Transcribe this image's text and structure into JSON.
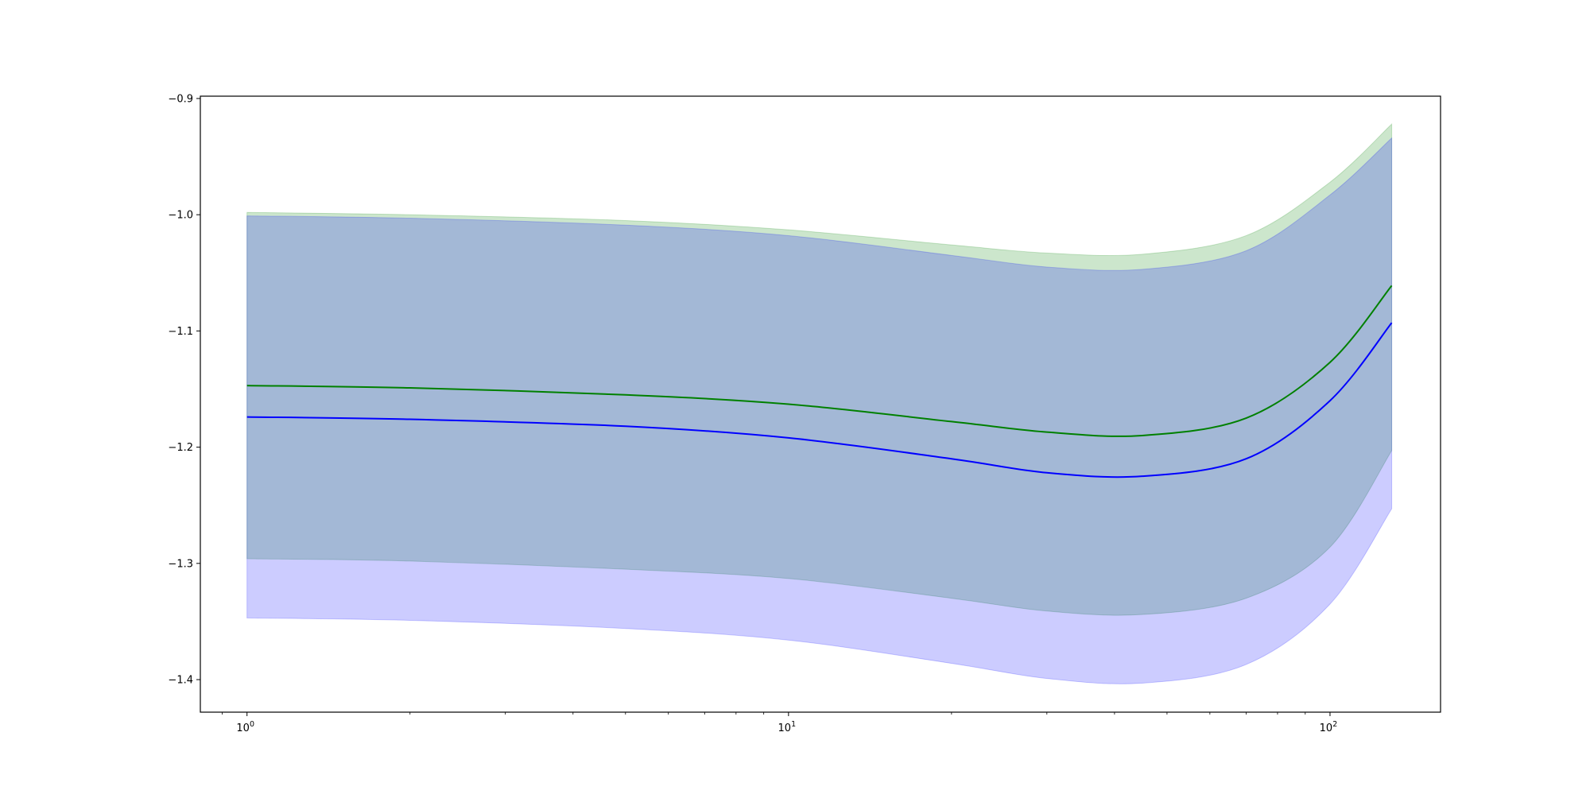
{
  "chart_data": {
    "type": "line",
    "xscale": "log",
    "xlim": [
      0.82,
      160
    ],
    "ylim": [
      -1.428,
      -0.898
    ],
    "grid": false,
    "x_ticks": [
      {
        "value": 1,
        "base": "10",
        "exp": "0"
      },
      {
        "value": 10,
        "base": "10",
        "exp": "1"
      },
      {
        "value": 100,
        "base": "10",
        "exp": "2"
      }
    ],
    "y_ticks": [
      {
        "value": -0.9,
        "label": "−0.9"
      },
      {
        "value": -1.0,
        "label": "−1.0"
      },
      {
        "value": -1.1,
        "label": "−1.1"
      },
      {
        "value": -1.2,
        "label": "−1.2"
      },
      {
        "value": -1.3,
        "label": "−1.3"
      },
      {
        "value": -1.4,
        "label": "−1.4"
      }
    ],
    "x": [
      1,
      2,
      5,
      10,
      20,
      30,
      45,
      70,
      100,
      130
    ],
    "series": [
      {
        "color": "#008000",
        "band_color": "#008000",
        "band_opacity": 0.2,
        "values": [
          -1.147,
          -1.149,
          -1.155,
          -1.163,
          -1.178,
          -1.187,
          -1.19,
          -1.175,
          -1.127,
          -1.061
        ],
        "upper": [
          -0.998,
          -1.0,
          -1.005,
          -1.013,
          -1.026,
          -1.033,
          -1.034,
          -1.018,
          -0.972,
          -0.922
        ],
        "lower": [
          -1.296,
          -1.298,
          -1.305,
          -1.313,
          -1.33,
          -1.341,
          -1.344,
          -1.33,
          -1.286,
          -1.203
        ]
      },
      {
        "color": "#0000ff",
        "band_color": "#0000ff",
        "band_opacity": 0.2,
        "values": [
          -1.174,
          -1.176,
          -1.182,
          -1.192,
          -1.21,
          -1.222,
          -1.225,
          -1.21,
          -1.16,
          -1.093
        ],
        "upper": [
          -1.001,
          -1.003,
          -1.009,
          -1.018,
          -1.035,
          -1.045,
          -1.047,
          -1.031,
          -0.983,
          -0.934
        ],
        "lower": [
          -1.347,
          -1.349,
          -1.356,
          -1.366,
          -1.386,
          -1.399,
          -1.403,
          -1.387,
          -1.335,
          -1.253
        ]
      }
    ]
  }
}
